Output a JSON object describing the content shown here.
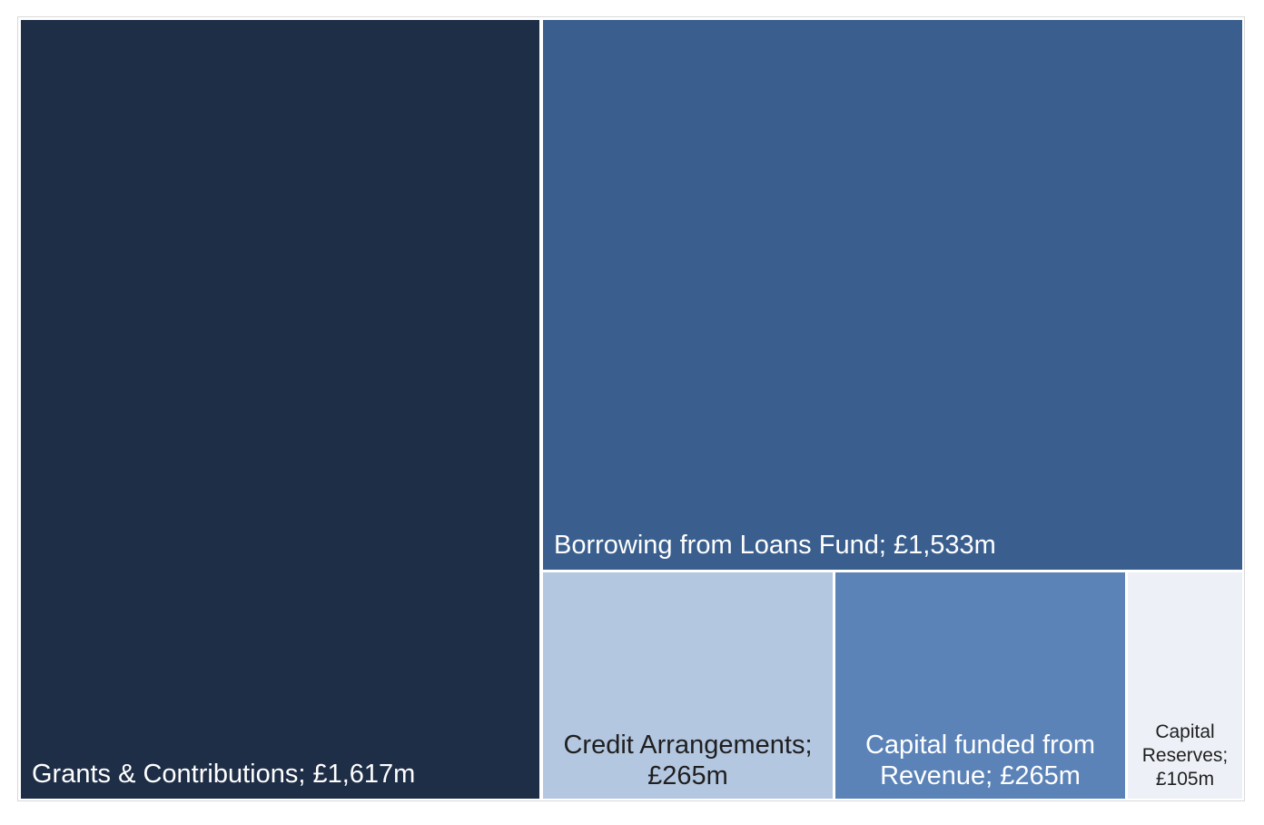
{
  "chart_data": {
    "type": "treemap",
    "items": [
      {
        "label": "Grants & Contributions; £1,617m",
        "name": "Grants & Contributions",
        "value": 1617,
        "color": "#1f2e47"
      },
      {
        "label": "Borrowing from Loans Fund; £1,533m",
        "name": "Borrowing from Loans Fund",
        "value": 1533,
        "color": "#3a5f8e"
      },
      {
        "label_lines": [
          "Credit Arrangements;",
          "£265m"
        ],
        "name": "Credit Arrangements",
        "value": 265,
        "color": "#b4c7e1"
      },
      {
        "label_lines": [
          "Capital funded from",
          "Revenue; £265m"
        ],
        "name": "Capital funded from Revenue",
        "value": 265,
        "color": "#5b83b8"
      },
      {
        "label_lines": [
          "Capital",
          "Reserves;",
          "£105m"
        ],
        "name": "Capital Reserves",
        "value": 105,
        "color": "#edf1f7"
      }
    ]
  }
}
